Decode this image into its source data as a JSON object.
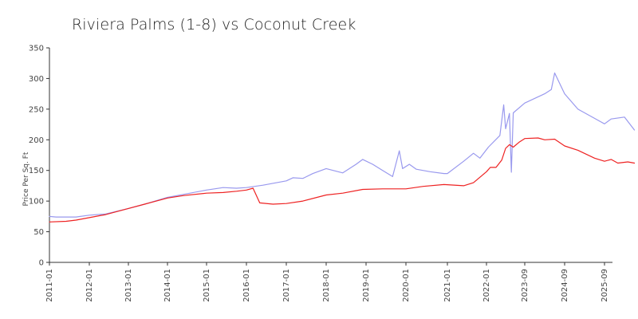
{
  "chart_data": {
    "type": "line",
    "title": "Riviera Palms (1-8) vs Coconut Creek",
    "xlabel": "",
    "ylabel": "Price Per Sq. Ft",
    "ylim": [
      0,
      350
    ],
    "yticks": [
      0,
      50,
      100,
      150,
      200,
      250,
      300,
      350
    ],
    "xlim": [
      "2011-01",
      "2025-11"
    ],
    "xticks": [
      "2011-01",
      "2012-01",
      "2013-01",
      "2014-01",
      "2015-01",
      "2016-01",
      "2017-01",
      "2018-01",
      "2019-01",
      "2020-01",
      "2021-01",
      "2022-01",
      "2023-09",
      "2024-09",
      "2025-09"
    ],
    "grid": false,
    "legend": "none",
    "series": [
      {
        "color": "#9999ee",
        "points": [
          [
            "2011-01",
            75
          ],
          [
            "2011-03",
            74
          ],
          [
            "2011-06",
            74
          ],
          [
            "2011-09",
            74
          ],
          [
            "2012-01",
            77
          ],
          [
            "2012-06",
            79
          ],
          [
            "2013-01",
            88
          ],
          [
            "2013-06",
            95
          ],
          [
            "2014-01",
            106
          ],
          [
            "2014-06",
            111
          ],
          [
            "2015-01",
            118
          ],
          [
            "2015-06",
            122
          ],
          [
            "2015-10",
            121
          ],
          [
            "2016-01",
            122
          ],
          [
            "2016-06",
            126
          ],
          [
            "2017-01",
            133
          ],
          [
            "2017-03",
            138
          ],
          [
            "2017-06",
            137
          ],
          [
            "2017-09",
            145
          ],
          [
            "2018-01",
            153
          ],
          [
            "2018-06",
            146
          ],
          [
            "2018-10",
            160
          ],
          [
            "2018-12",
            168
          ],
          [
            "2019-03",
            160
          ],
          [
            "2019-06",
            150
          ],
          [
            "2019-09",
            140
          ],
          [
            "2019-11",
            182
          ],
          [
            "2019-12",
            153
          ],
          [
            "2020-02",
            160
          ],
          [
            "2020-04",
            152
          ],
          [
            "2020-08",
            148
          ],
          [
            "2020-12",
            145
          ],
          [
            "2021-01",
            145
          ],
          [
            "2021-06",
            165
          ],
          [
            "2021-09",
            178
          ],
          [
            "2021-11",
            170
          ],
          [
            "2022-02",
            188
          ],
          [
            "2022-08",
            207
          ],
          [
            "2022-10",
            257
          ],
          [
            "2022-11",
            218
          ],
          [
            "2023-01",
            243
          ],
          [
            "2023-02",
            147
          ],
          [
            "2023-03",
            244
          ],
          [
            "2023-09",
            260
          ],
          [
            "2024-03",
            275
          ],
          [
            "2024-05",
            282
          ],
          [
            "2024-06",
            309
          ],
          [
            "2024-09",
            275
          ],
          [
            "2025-01",
            250
          ],
          [
            "2025-06",
            235
          ],
          [
            "2025-08",
            229
          ],
          [
            "2025-09",
            226
          ],
          [
            "2025-11",
            234
          ],
          [
            "2026-03",
            237
          ],
          [
            "2026-06",
            216
          ]
        ]
      },
      {
        "color": "#ee2222",
        "points": [
          [
            "2011-01",
            66
          ],
          [
            "2011-06",
            67
          ],
          [
            "2011-09",
            69
          ],
          [
            "2012-01",
            73
          ],
          [
            "2012-06",
            78
          ],
          [
            "2013-01",
            88
          ],
          [
            "2013-06",
            95
          ],
          [
            "2014-01",
            105
          ],
          [
            "2014-06",
            109
          ],
          [
            "2015-01",
            113
          ],
          [
            "2015-06",
            114
          ],
          [
            "2015-10",
            116
          ],
          [
            "2016-01",
            118
          ],
          [
            "2016-03",
            121
          ],
          [
            "2016-05",
            97
          ],
          [
            "2016-09",
            95
          ],
          [
            "2017-01",
            96
          ],
          [
            "2017-06",
            100
          ],
          [
            "2018-01",
            110
          ],
          [
            "2018-06",
            113
          ],
          [
            "2018-12",
            119
          ],
          [
            "2019-06",
            120
          ],
          [
            "2020-01",
            120
          ],
          [
            "2020-06",
            124
          ],
          [
            "2020-12",
            127
          ],
          [
            "2021-06",
            125
          ],
          [
            "2021-09",
            130
          ],
          [
            "2022-01",
            148
          ],
          [
            "2022-03",
            155
          ],
          [
            "2022-06",
            155
          ],
          [
            "2022-09",
            167
          ],
          [
            "2022-11",
            186
          ],
          [
            "2023-01",
            192
          ],
          [
            "2023-03",
            188
          ],
          [
            "2023-06",
            196
          ],
          [
            "2023-09",
            202
          ],
          [
            "2024-01",
            203
          ],
          [
            "2024-03",
            200
          ],
          [
            "2024-06",
            201
          ],
          [
            "2024-09",
            190
          ],
          [
            "2025-01",
            183
          ],
          [
            "2025-06",
            170
          ],
          [
            "2025-09",
            165
          ],
          [
            "2025-11",
            168
          ],
          [
            "2026-01",
            162
          ],
          [
            "2026-04",
            164
          ],
          [
            "2026-06",
            162
          ]
        ]
      }
    ]
  }
}
